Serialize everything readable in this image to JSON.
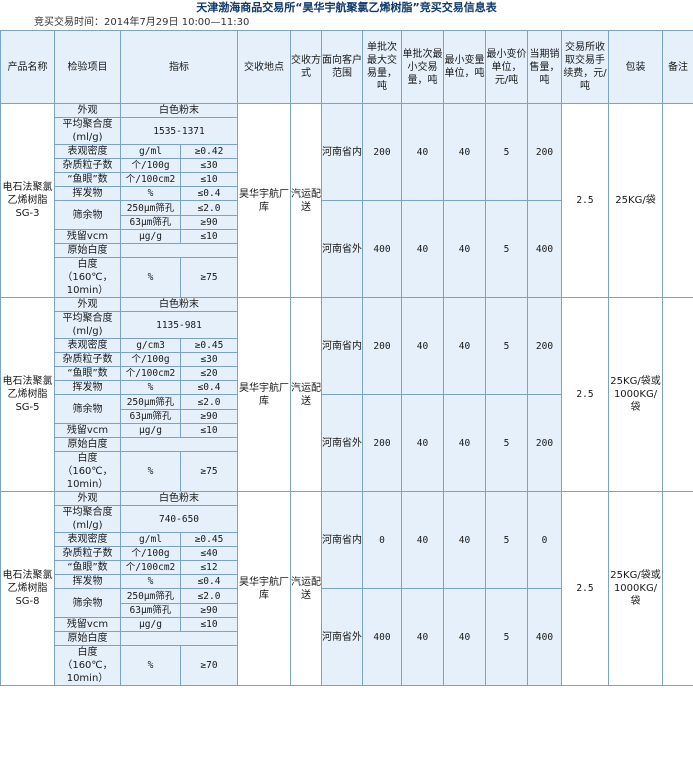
{
  "title": "天津渤海商品交易所“昊华宇航聚氯乙烯树脂”竞买交易信息表",
  "trade_time": "竞买交易时间：2014年7月29日 10:00—11:30",
  "headers": [
    "产品名称",
    "检验项目",
    "指标",
    "交收地点",
    "交收方式",
    "面向客户范围",
    "单批次最大交易量，吨",
    "单批次最小交易量，吨",
    "最小变量单位，吨",
    "最小变价单位，元/吨",
    "当期销售量，吨",
    "交易所收取交易手续费，元/吨",
    "包装",
    "备注"
  ],
  "products": [
    {
      "name": "电石法聚氯乙烯树脂SG-3",
      "location": "昊华宇航厂库",
      "method": "汽运配送",
      "fee": "2.5",
      "package": "25KG/袋",
      "items": {
        "appearance": {
          "label": "外观",
          "value": "白色粉末"
        },
        "viscosity": {
          "label": "平均聚合度(ml/g)",
          "value": "1535-1371"
        },
        "density": {
          "label": "表观密度",
          "unit": "g/ml",
          "value": "≥0.42"
        },
        "impurity": {
          "label": "杂质粒子数",
          "unit": "个/100g",
          "value": "≤30"
        },
        "fisheye": {
          "label": "“鱼眼”数",
          "unit": "个/100cm2",
          "value": "≤10"
        },
        "volatile": {
          "label": "挥发物",
          "unit": "%",
          "value": "≤0.4"
        },
        "sieve": {
          "label": "筛余物",
          "row1": "250μm筛孔",
          "val1": "≤2.0",
          "row2": "63μm筛孔",
          "val2": "≥90"
        },
        "residual": {
          "label": "残留vcm",
          "unit": "μg/g",
          "value": "≤10"
        },
        "whiteness_orig": {
          "label": "原始白度"
        },
        "whiteness": {
          "label": "白度（160℃，10min）",
          "unit": "%",
          "value": "≥75"
        }
      },
      "rows": [
        {
          "range": "河南省内",
          "max": "200",
          "min": "40",
          "step": "40",
          "price_step": "5",
          "sales": "200"
        },
        {
          "range": "河南省外",
          "max": "400",
          "min": "40",
          "step": "40",
          "price_step": "5",
          "sales": "400"
        }
      ]
    },
    {
      "name": "电石法聚氯乙烯树脂SG-5",
      "location": "昊华宇航厂库",
      "method": "汽运配送",
      "fee": "2.5",
      "package": "25KG/袋或1000KG/袋",
      "items": {
        "appearance": {
          "label": "外观",
          "value": "白色粉末"
        },
        "viscosity": {
          "label": "平均聚合度(ml/g)",
          "value": "1135-981"
        },
        "density": {
          "label": "表观密度",
          "unit": "g/cm3",
          "value": "≥0.45"
        },
        "impurity": {
          "label": "杂质粒子数",
          "unit": "个/100g",
          "value": "≤30"
        },
        "fisheye": {
          "label": "“鱼眼”数",
          "unit": "个/100cm2",
          "value": "≤20"
        },
        "volatile": {
          "label": "挥发物",
          "unit": "%",
          "value": "≤0.4"
        },
        "sieve": {
          "label": "筛余物",
          "row1": "250μm筛孔",
          "val1": "≤2.0",
          "row2": "63μm筛孔",
          "val2": "≥90"
        },
        "residual": {
          "label": "残留vcm",
          "unit": "μg/g",
          "value": "≤10"
        },
        "whiteness_orig": {
          "label": "原始白度"
        },
        "whiteness": {
          "label": "白度（160℃，10min）",
          "unit": "%",
          "value": "≥75"
        }
      },
      "rows": [
        {
          "range": "河南省内",
          "max": "200",
          "min": "40",
          "step": "40",
          "price_step": "5",
          "sales": "200"
        },
        {
          "range": "河南省外",
          "max": "200",
          "min": "40",
          "step": "40",
          "price_step": "5",
          "sales": "200"
        }
      ]
    },
    {
      "name": "电石法聚氯乙烯树脂SG-8",
      "location": "昊华宇航厂库",
      "method": "汽运配送",
      "fee": "2.5",
      "package": "25KG/袋或1000KG/袋",
      "items": {
        "appearance": {
          "label": "外观",
          "value": "白色粉末"
        },
        "viscosity": {
          "label": "平均聚合度(ml/g)",
          "value": "740-650"
        },
        "density": {
          "label": "表观密度",
          "unit": "g/ml",
          "value": "≥0.45"
        },
        "impurity": {
          "label": "杂质粒子数",
          "unit": "个/100g",
          "value": "≤40"
        },
        "fisheye": {
          "label": "“鱼眼”数",
          "unit": "个/100cm2",
          "value": "≤12"
        },
        "volatile": {
          "label": "挥发物",
          "unit": "%",
          "value": "≤0.4"
        },
        "sieve": {
          "label": "筛余物",
          "row1": "250μm筛孔",
          "val1": "≤2.0",
          "row2": "63μm筛孔",
          "val2": "≥90"
        },
        "residual": {
          "label": "残留vcm",
          "unit": "μg/g",
          "value": "≤10"
        },
        "whiteness_orig": {
          "label": "原始白度"
        },
        "whiteness": {
          "label": "白度（160℃，10min）",
          "unit": "%",
          "value": "≥70"
        }
      },
      "rows": [
        {
          "range": "河南省内",
          "max": "0",
          "min": "40",
          "step": "40",
          "price_step": "5",
          "sales": "0"
        },
        {
          "range": "河南省外",
          "max": "400",
          "min": "40",
          "step": "40",
          "price_step": "5",
          "sales": "400"
        }
      ]
    }
  ]
}
